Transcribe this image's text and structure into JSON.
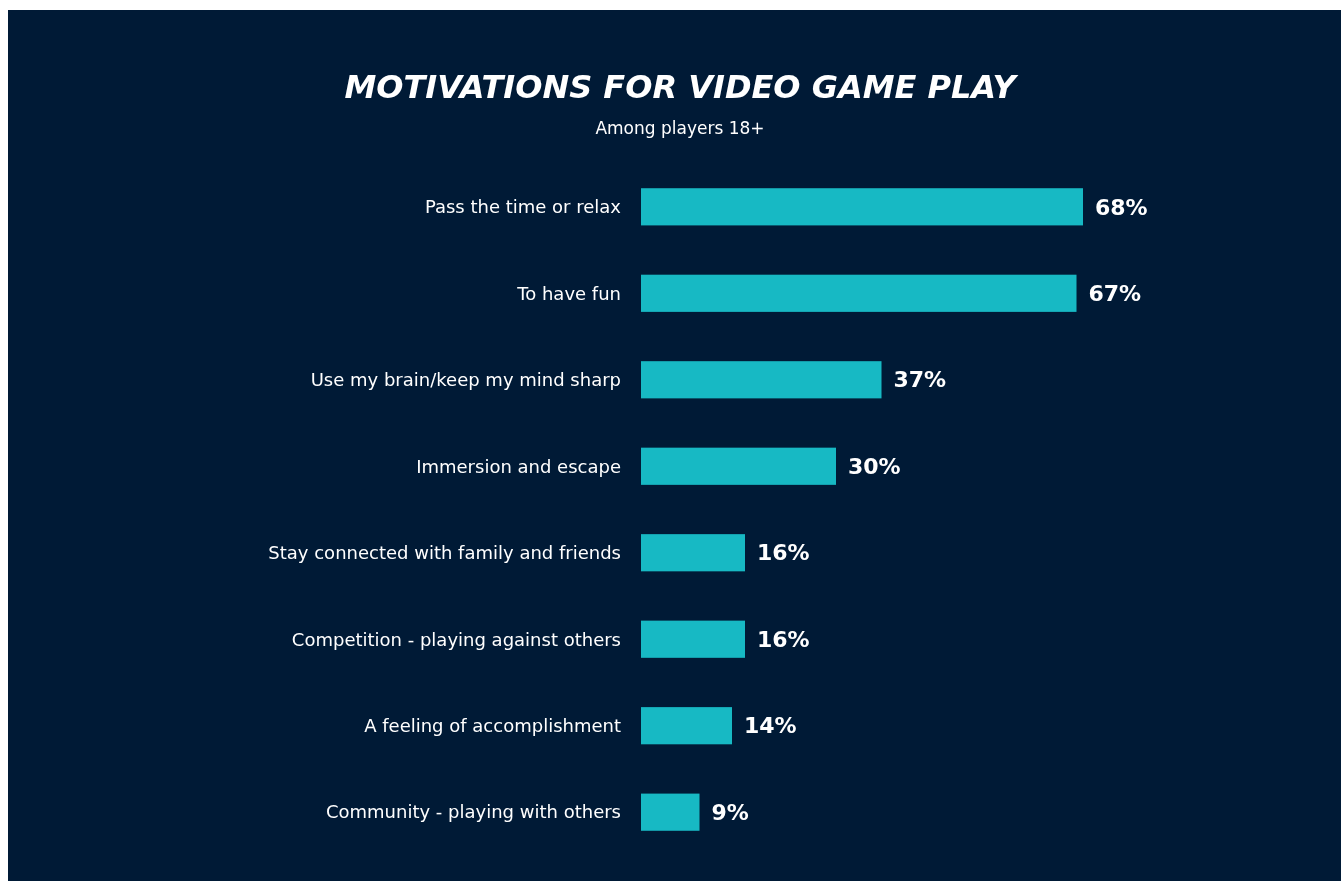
{
  "chart_data": {
    "type": "bar",
    "orientation": "horizontal",
    "title": "MOTIVATIONS FOR VIDEO GAME PLAY",
    "subtitle": "Among players 18+",
    "categories": [
      "Pass the time or relax",
      "To have fun",
      "Use my brain/keep my mind sharp",
      "Immersion and escape",
      "Stay connected with family and friends",
      "Competition - playing against others",
      "A feeling of accomplishment",
      "Community - playing with others"
    ],
    "values": [
      68,
      67,
      37,
      30,
      16,
      16,
      14,
      9
    ],
    "value_labels": [
      "68%",
      "67%",
      "37%",
      "30%",
      "16%",
      "16%",
      "14%",
      "9%"
    ],
    "color": "#17b9c4"
  }
}
